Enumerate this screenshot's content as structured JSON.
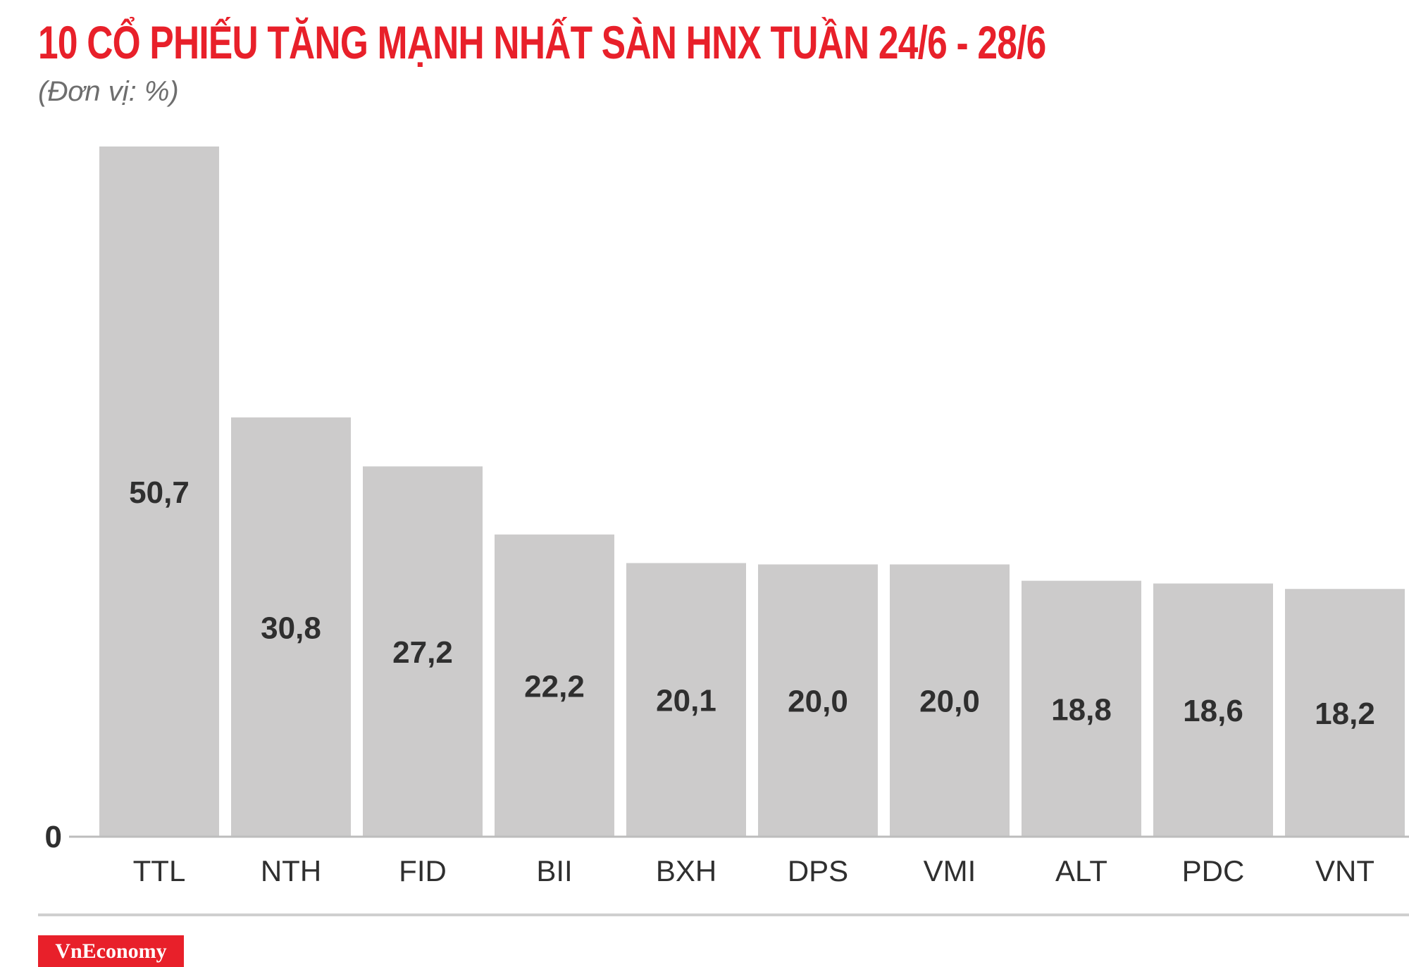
{
  "title": "10 CỔ PHIẾU TĂNG MẠNH NHẤT SÀN HNX TUẦN 24/6 - 28/6",
  "subtitle": "(Đơn vị: %)",
  "brand": "VnEconomy",
  "colors": {
    "title": "#e8202a",
    "bar": "#cccbcb",
    "text": "#2f2f2f",
    "brand_bg": "#e8202a"
  },
  "chart_data": {
    "type": "bar",
    "title": "10 CỔ PHIẾU TĂNG MẠNH NHẤT SÀN HNX TUẦN 24/6 - 28/6",
    "subtitle": "(Đơn vị: %)",
    "categories": [
      "TTL",
      "NTH",
      "FID",
      "BII",
      "BXH",
      "DPS",
      "VMI",
      "ALT",
      "PDC",
      "VNT"
    ],
    "values": [
      50.7,
      30.8,
      27.2,
      22.2,
      20.1,
      20.0,
      20.0,
      18.8,
      18.6,
      18.2
    ],
    "value_labels": [
      "50,7",
      "30,8",
      "27,2",
      "22,2",
      "20,1",
      "20,0",
      "20,0",
      "18,8",
      "18,6",
      "18,2"
    ],
    "y_tick_labels": [
      "0"
    ],
    "ylim": [
      0,
      50.7
    ],
    "grid": false,
    "legend": "none",
    "xlabel": "",
    "ylabel": ""
  }
}
